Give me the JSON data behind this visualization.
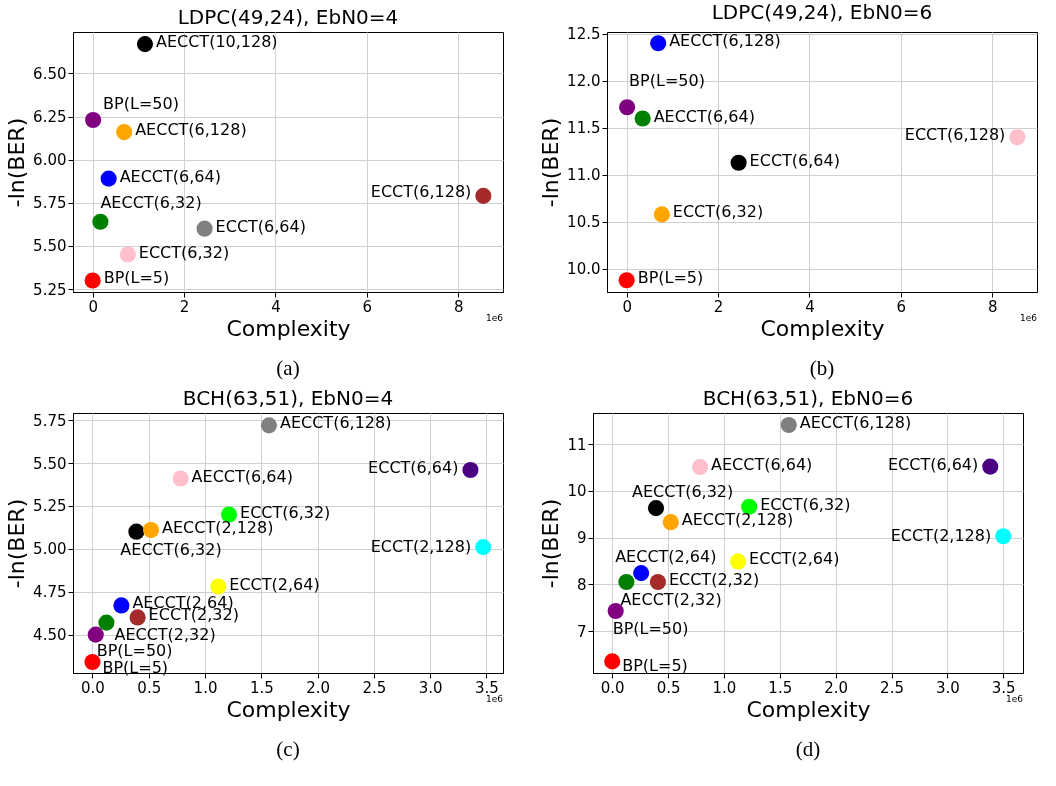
{
  "chart_data": [
    {
      "type": "scatter",
      "title": "LDPC(49,24), EbN0=4",
      "xlabel": "Complexity",
      "ylabel": "-ln(BER)",
      "annotations": [
        "1e6",
        "(a)"
      ],
      "marker": "circle",
      "grid": true,
      "xlim": [
        -0.43,
        8.98
      ],
      "xticks": [
        0,
        2,
        4,
        6,
        8
      ],
      "ylim": [
        5.233,
        6.74
      ],
      "yticks": [
        {
          "value": 5.25,
          "label": "5.25"
        },
        {
          "value": 5.5,
          "label": "5.50"
        },
        {
          "value": 5.75,
          "label": "5.75"
        },
        {
          "value": 6.0,
          "label": "6.00"
        },
        {
          "value": 6.25,
          "label": "6.25"
        },
        {
          "value": 6.5,
          "label": "6.50"
        }
      ],
      "series": [
        {
          "name": "AECCT(10,128)",
          "color": "#000000",
          "x": [
            1.145
          ],
          "values": [
            6.67
          ]
        },
        {
          "name": "BP(L=50)",
          "color": "#800080",
          "x": [
            0.01
          ],
          "values": [
            6.23
          ]
        },
        {
          "name": "AECCT(6,128)",
          "color": "#ffa500",
          "x": [
            0.69
          ],
          "values": [
            6.16
          ]
        },
        {
          "name": "AECCT(6,64)",
          "color": "#0000ff",
          "x": [
            0.35
          ],
          "values": [
            5.89
          ]
        },
        {
          "name": "ECCT(6,128)",
          "color": "#a52a2a",
          "x": [
            8.55
          ],
          "values": [
            5.79
          ]
        },
        {
          "name": "AECCT(6,32)",
          "color": "#008000",
          "x": [
            0.17
          ],
          "values": [
            5.64
          ]
        },
        {
          "name": "ECCT(6,64)",
          "color": "#808080",
          "x": [
            2.45
          ],
          "values": [
            5.6
          ]
        },
        {
          "name": "ECCT(6,32)",
          "color": "#ffc0cb",
          "x": [
            0.77
          ],
          "values": [
            5.45
          ]
        },
        {
          "name": "BP(L=5)",
          "color": "#ff0000",
          "x": [
            0
          ],
          "values": [
            5.3
          ]
        }
      ]
    },
    {
      "type": "scatter",
      "title": "LDPC(49,24), EbN0=6",
      "xlabel": "Complexity",
      "ylabel": "-ln(BER)",
      "annotations": [
        "1e6",
        "(b)"
      ],
      "marker": "circle",
      "grid": true,
      "xlim": [
        -0.43,
        8.98
      ],
      "xticks": [
        0,
        2,
        4,
        6,
        8
      ],
      "ylim": [
        9.755,
        12.52
      ],
      "yticks": [
        {
          "value": 10.0,
          "label": "10.0"
        },
        {
          "value": 10.5,
          "label": "10.5"
        },
        {
          "value": 11.0,
          "label": "11.0"
        },
        {
          "value": 11.5,
          "label": "11.5"
        },
        {
          "value": 12.0,
          "label": "12.0"
        },
        {
          "value": 12.5,
          "label": "12.5"
        }
      ],
      "series": [
        {
          "name": "AECCT(6,128)",
          "color": "#0000ff",
          "x": [
            0.69
          ],
          "values": [
            12.4
          ]
        },
        {
          "name": "BP(L=50)",
          "color": "#800080",
          "x": [
            0.01
          ],
          "values": [
            11.72
          ]
        },
        {
          "name": "AECCT(6,64)",
          "color": "#008000",
          "x": [
            0.35
          ],
          "values": [
            11.6
          ]
        },
        {
          "name": "ECCT(6,128)",
          "color": "#ffc0cb",
          "x": [
            8.55
          ],
          "values": [
            11.4
          ]
        },
        {
          "name": "ECCT(6,64)",
          "color": "#000000",
          "x": [
            2.45
          ],
          "values": [
            11.13
          ]
        },
        {
          "name": "ECCT(6,32)",
          "color": "#ffa500",
          "x": [
            0.77
          ],
          "values": [
            10.58
          ]
        },
        {
          "name": "BP(L=5)",
          "color": "#ff0000",
          "x": [
            0
          ],
          "values": [
            9.88
          ]
        }
      ]
    },
    {
      "type": "scatter",
      "title": "BCH(63,51), EbN0=4",
      "xlabel": "Complexity",
      "ylabel": "-ln(BER)",
      "annotations": [
        "1e6",
        "(c)"
      ],
      "marker": "circle",
      "grid": true,
      "xlim": [
        -0.173,
        3.647
      ],
      "xticks": [
        {
          "value": 0,
          "label": "0.0"
        },
        0.5,
        {
          "value": 1,
          "label": "1.0"
        },
        1.5,
        {
          "value": 2,
          "label": "2.0"
        },
        2.5,
        {
          "value": 3,
          "label": "3.0"
        },
        3.5
      ],
      "ylim": [
        4.276,
        5.792
      ],
      "yticks": [
        {
          "value": 4.5,
          "label": "4.50"
        },
        4.75,
        {
          "value": 5.0,
          "label": "5.00"
        },
        5.25,
        {
          "value": 5.5,
          "label": "5.50"
        },
        5.75
      ],
      "series": [
        {
          "name": "AECCT(6,128)",
          "color": "#808080",
          "x": [
            1.568
          ],
          "values": [
            5.72
          ]
        },
        {
          "name": "ECCT(6,64)",
          "color": "#4b0082",
          "x": [
            3.358
          ],
          "values": [
            5.46
          ]
        },
        {
          "name": "AECCT(6,64)",
          "color": "#ffc0cb",
          "x": [
            0.783
          ],
          "values": [
            5.41
          ]
        },
        {
          "name": "ECCT(6,32)",
          "color": "#00ff00",
          "x": [
            1.213
          ],
          "values": [
            5.2
          ]
        },
        {
          "name": "AECCT(6,32)",
          "color": "#000000",
          "x": [
            0.39
          ],
          "values": [
            5.1
          ]
        },
        {
          "name": "AECCT(2,128)",
          "color": "#ffa500",
          "x": [
            0.52
          ],
          "values": [
            5.11
          ]
        },
        {
          "name": "ECCT(2,128)",
          "color": "#00ffff",
          "x": [
            3.471
          ],
          "values": [
            5.01
          ]
        },
        {
          "name": "ECCT(2,64)",
          "color": "#ffff00",
          "x": [
            1.118
          ],
          "values": [
            4.78
          ]
        },
        {
          "name": "AECCT(2,64)",
          "color": "#0000ff",
          "x": [
            0.257
          ],
          "values": [
            4.67
          ]
        },
        {
          "name": "ECCT(2,32)",
          "color": "#a52a2a",
          "x": [
            0.401
          ],
          "values": [
            4.6
          ]
        },
        {
          "name": "AECCT(2,32)",
          "color": "#008000",
          "x": [
            0.124
          ],
          "values": [
            4.57
          ]
        },
        {
          "name": "BP(L=50)",
          "color": "#800080",
          "x": [
            0.029
          ],
          "values": [
            4.5
          ]
        },
        {
          "name": "BP(L=5)",
          "color": "#ff0000",
          "x": [
            0
          ],
          "values": [
            4.34
          ]
        }
      ]
    },
    {
      "type": "scatter",
      "title": "BCH(63,51), EbN0=6",
      "xlabel": "Complexity",
      "ylabel": "-ln(BER)",
      "annotations": [
        "1e6",
        "(d)"
      ],
      "marker": "circle",
      "grid": true,
      "xlim": [
        -0.172,
        3.677
      ],
      "xticks": [
        {
          "value": 0,
          "label": "0.0"
        },
        0.5,
        {
          "value": 1,
          "label": "1.0"
        },
        1.5,
        {
          "value": 2,
          "label": "2.0"
        },
        2.5,
        {
          "value": 3,
          "label": "3.0"
        },
        3.5
      ],
      "ylim": [
        6.102,
        11.667
      ],
      "yticks": [
        7,
        8,
        9,
        10,
        11
      ],
      "series": [
        {
          "name": "AECCT(6,128)",
          "color": "#808080",
          "x": [
            1.58
          ],
          "values": [
            11.41
          ]
        },
        {
          "name": "AECCT(6,64)",
          "color": "#ffc0cb",
          "x": [
            0.786
          ],
          "values": [
            10.51
          ]
        },
        {
          "name": "ECCT(6,64)",
          "color": "#4b0082",
          "x": [
            3.384
          ],
          "values": [
            10.52
          ]
        },
        {
          "name": "AECCT(6,32)",
          "color": "#000000",
          "x": [
            0.392
          ],
          "values": [
            9.63
          ]
        },
        {
          "name": "ECCT(6,32)",
          "color": "#00ff00",
          "x": [
            1.226
          ],
          "values": [
            9.66
          ]
        },
        {
          "name": "AECCT(2,128)",
          "color": "#ffa500",
          "x": [
            0.524
          ],
          "values": [
            9.33
          ]
        },
        {
          "name": "ECCT(2,128)",
          "color": "#00ffff",
          "x": [
            3.5
          ],
          "values": [
            9.03
          ]
        },
        {
          "name": "ECCT(2,64)",
          "color": "#ffff00",
          "x": [
            1.127
          ],
          "values": [
            8.49
          ]
        },
        {
          "name": "AECCT(2,64)",
          "color": "#0000ff",
          "x": [
            0.259
          ],
          "values": [
            8.24
          ]
        },
        {
          "name": "AECCT(2,32)",
          "color": "#008000",
          "x": [
            0.127
          ],
          "values": [
            8.05
          ]
        },
        {
          "name": "ECCT(2,32)",
          "color": "#a52a2a",
          "x": [
            0.409
          ],
          "values": [
            8.05
          ]
        },
        {
          "name": "BP(L=50)",
          "color": "#800080",
          "x": [
            0.031
          ],
          "values": [
            7.43
          ]
        },
        {
          "name": "BP(L=5)",
          "color": "#ff0000",
          "x": [
            0
          ],
          "values": [
            6.35
          ]
        }
      ]
    }
  ]
}
